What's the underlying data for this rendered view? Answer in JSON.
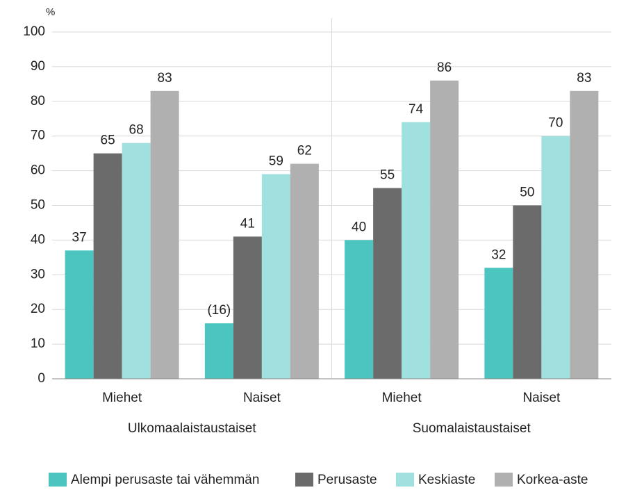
{
  "chart_data": {
    "type": "bar",
    "y_label": "%",
    "categories": [
      "Miehet",
      "Naiset",
      "Miehet",
      "Naiset"
    ],
    "group_labels": [
      "Ulkomaalaistaustaiset",
      "Suomalaistaustaiset"
    ],
    "series": [
      {
        "name": "Alempi perusaste tai vähemmän",
        "color": "#4cc5c1",
        "values": [
          37,
          16,
          40,
          32
        ],
        "value_labels": [
          "37",
          "(16)",
          "40",
          "32"
        ]
      },
      {
        "name": "Perusaste",
        "color": "#6b6b6b",
        "values": [
          65,
          41,
          55,
          50
        ]
      },
      {
        "name": "Keskiaste",
        "color": "#a0e0de",
        "values": [
          68,
          59,
          74,
          70
        ]
      },
      {
        "name": "Korkea-aste",
        "color": "#b0b0b0",
        "values": [
          83,
          62,
          86,
          83
        ]
      }
    ],
    "ylim": [
      0,
      100
    ],
    "yticks": [
      0,
      10,
      20,
      30,
      40,
      50,
      60,
      70,
      80,
      90,
      100
    ],
    "grid": true,
    "legend": "bottom"
  }
}
